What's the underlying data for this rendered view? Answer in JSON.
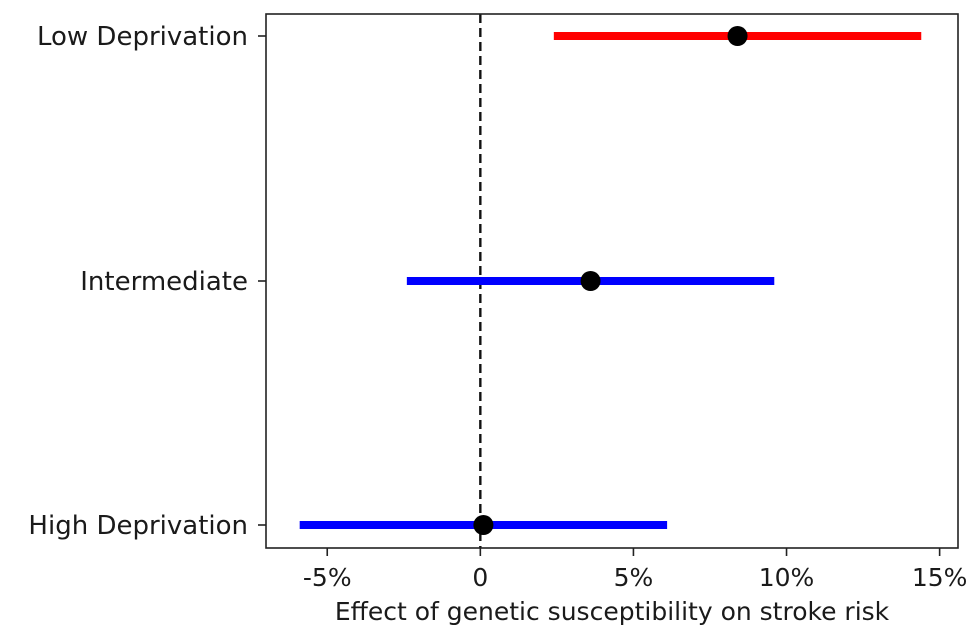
{
  "chart_data": {
    "type": "forest",
    "xlabel": "Effect of genetic susceptibility on stroke risk",
    "ylabel": "",
    "xlim": [
      -7,
      15.6
    ],
    "x_ticks": [
      {
        "value": -5,
        "label": "-5%"
      },
      {
        "value": 0,
        "label": "0"
      },
      {
        "value": 5,
        "label": "5%"
      },
      {
        "value": 10,
        "label": "10%"
      },
      {
        "value": 15,
        "label": "15%"
      }
    ],
    "reference_line": {
      "value": 0,
      "style": "dashed"
    },
    "grid": false,
    "categories": [
      "Low Deprivation",
      "Intermediate",
      "High Deprivation"
    ],
    "points": [
      {
        "category": "Low Deprivation",
        "estimate": 8.4,
        "ci_low": 2.4,
        "ci_high": 14.4,
        "color": "#ff0000"
      },
      {
        "category": "Intermediate",
        "estimate": 3.6,
        "ci_low": -2.4,
        "ci_high": 9.6,
        "color": "#0000ff"
      },
      {
        "category": "High Deprivation",
        "estimate": 0.1,
        "ci_low": -5.9,
        "ci_high": 6.1,
        "color": "#0000ff"
      }
    ],
    "marker_color": "#000000"
  }
}
